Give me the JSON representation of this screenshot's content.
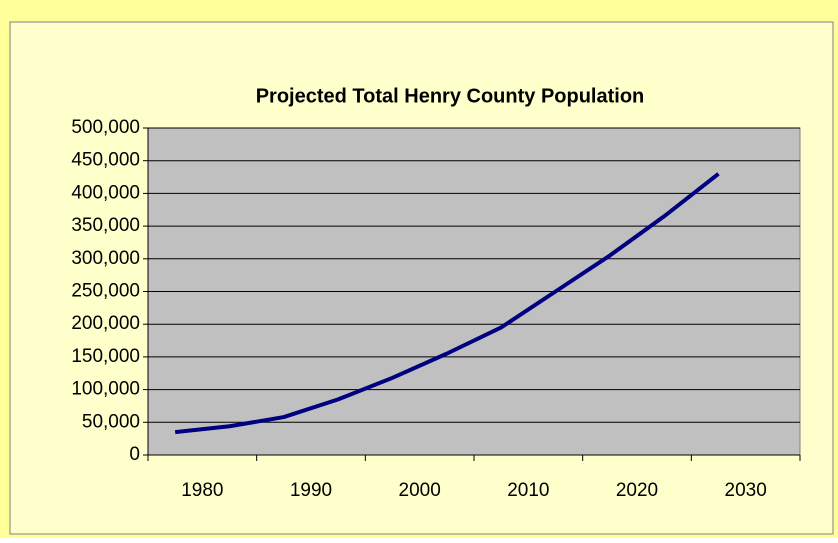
{
  "chart_data": {
    "type": "line",
    "title": "Projected Total Henry County Population",
    "categories": [
      "1980",
      null,
      "1990",
      null,
      "2000",
      null,
      "2010",
      null,
      "2020",
      null,
      "2030",
      null
    ],
    "series": [
      {
        "name": "Population",
        "color": "#000080",
        "values": [
          35000,
          44000,
          58000,
          85000,
          118000,
          155000,
          195000,
          250000,
          305000,
          365000,
          430000,
          null
        ]
      }
    ],
    "ylim": [
      0,
      500000
    ],
    "yticks": [
      0,
      {
        "value": 50000,
        "label": "50,000"
      },
      {
        "value": 100000,
        "label": "100,000"
      },
      {
        "value": 150000,
        "label": "150,000"
      },
      {
        "value": 200000,
        "label": "200,000"
      },
      {
        "value": 250000,
        "label": "250,000"
      },
      {
        "value": 300000,
        "label": "300,000"
      },
      {
        "value": 350000,
        "label": "350,000"
      },
      {
        "value": 400000,
        "label": "400,000"
      },
      {
        "value": 450000,
        "label": "450,000"
      },
      {
        "value": 500000,
        "label": "500,000"
      }
    ],
    "grid": true,
    "plot_background": "#c0c0c0"
  }
}
